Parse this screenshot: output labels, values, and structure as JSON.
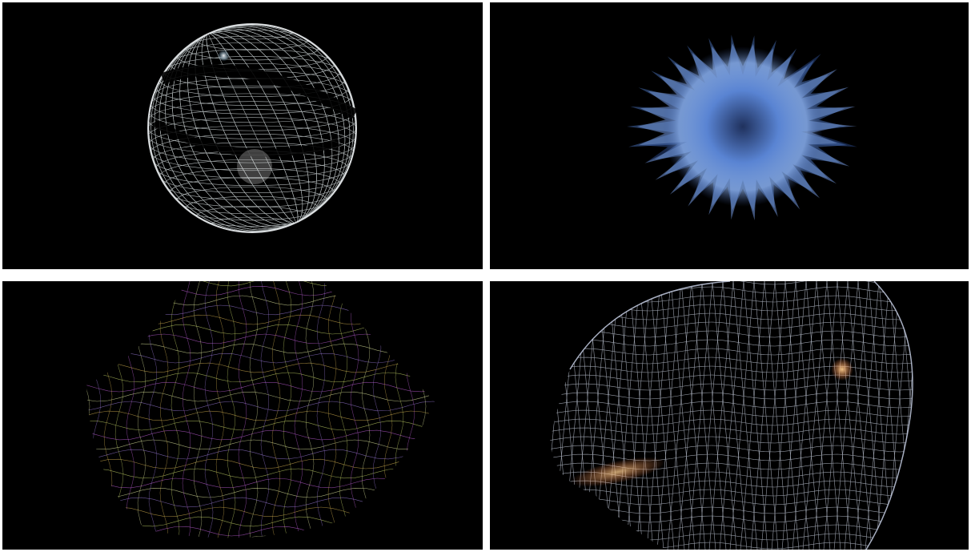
{
  "colors": {
    "background": "#000000",
    "separator": "#ffffff",
    "sphere_mesh": "#e8f0f2",
    "burst_blue": "#6f9ee8",
    "terrain_green": "#c8d86a",
    "terrain_magenta": "#c060d8",
    "head_mesh": "#d8e0f0",
    "head_warm": "#f0b070"
  }
}
